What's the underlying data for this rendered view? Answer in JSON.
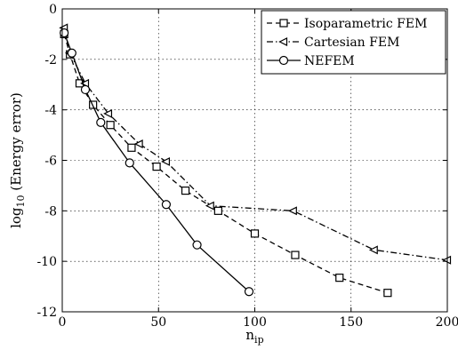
{
  "chart_data": {
    "type": "line",
    "title": "",
    "xlabel": "n",
    "xlabel_sub": "ip",
    "ylabel": "log",
    "ylabel_sub": "10",
    "ylabel_rest": " (Energy error)",
    "xlim": [
      0,
      200
    ],
    "ylim": [
      -12,
      0
    ],
    "xticks": [
      0,
      50,
      100,
      150,
      200
    ],
    "yticks": [
      0,
      -2,
      -4,
      -6,
      -8,
      -10,
      -12
    ],
    "grid": true,
    "legend_position": "top-right",
    "series": [
      {
        "name": "Isoparametric FEM",
        "marker": "square",
        "dash": "dashed",
        "x": [
          1,
          4,
          9,
          16,
          25,
          36,
          49,
          64,
          81,
          100,
          121,
          144,
          169
        ],
        "y": [
          -1.0,
          -1.8,
          -2.95,
          -3.8,
          -4.6,
          -5.5,
          -6.25,
          -7.2,
          -8.0,
          -8.9,
          -9.75,
          -10.65,
          -11.25
        ]
      },
      {
        "name": "Cartesian FEM",
        "marker": "triangle-left",
        "dash": "dashdot",
        "x": [
          1,
          4,
          12,
          24,
          40,
          54,
          77,
          120,
          162,
          200
        ],
        "y": [
          -0.75,
          -1.75,
          -2.95,
          -4.15,
          -5.35,
          -6.05,
          -7.8,
          -8.0,
          -9.55,
          -9.95
        ]
      },
      {
        "name": "NEFEM",
        "marker": "circle",
        "dash": "solid",
        "x": [
          1,
          5,
          12,
          20,
          35,
          54,
          70,
          97
        ],
        "y": [
          -0.95,
          -1.75,
          -3.2,
          -4.5,
          -6.1,
          -7.75,
          -9.35,
          -11.2
        ]
      }
    ]
  }
}
